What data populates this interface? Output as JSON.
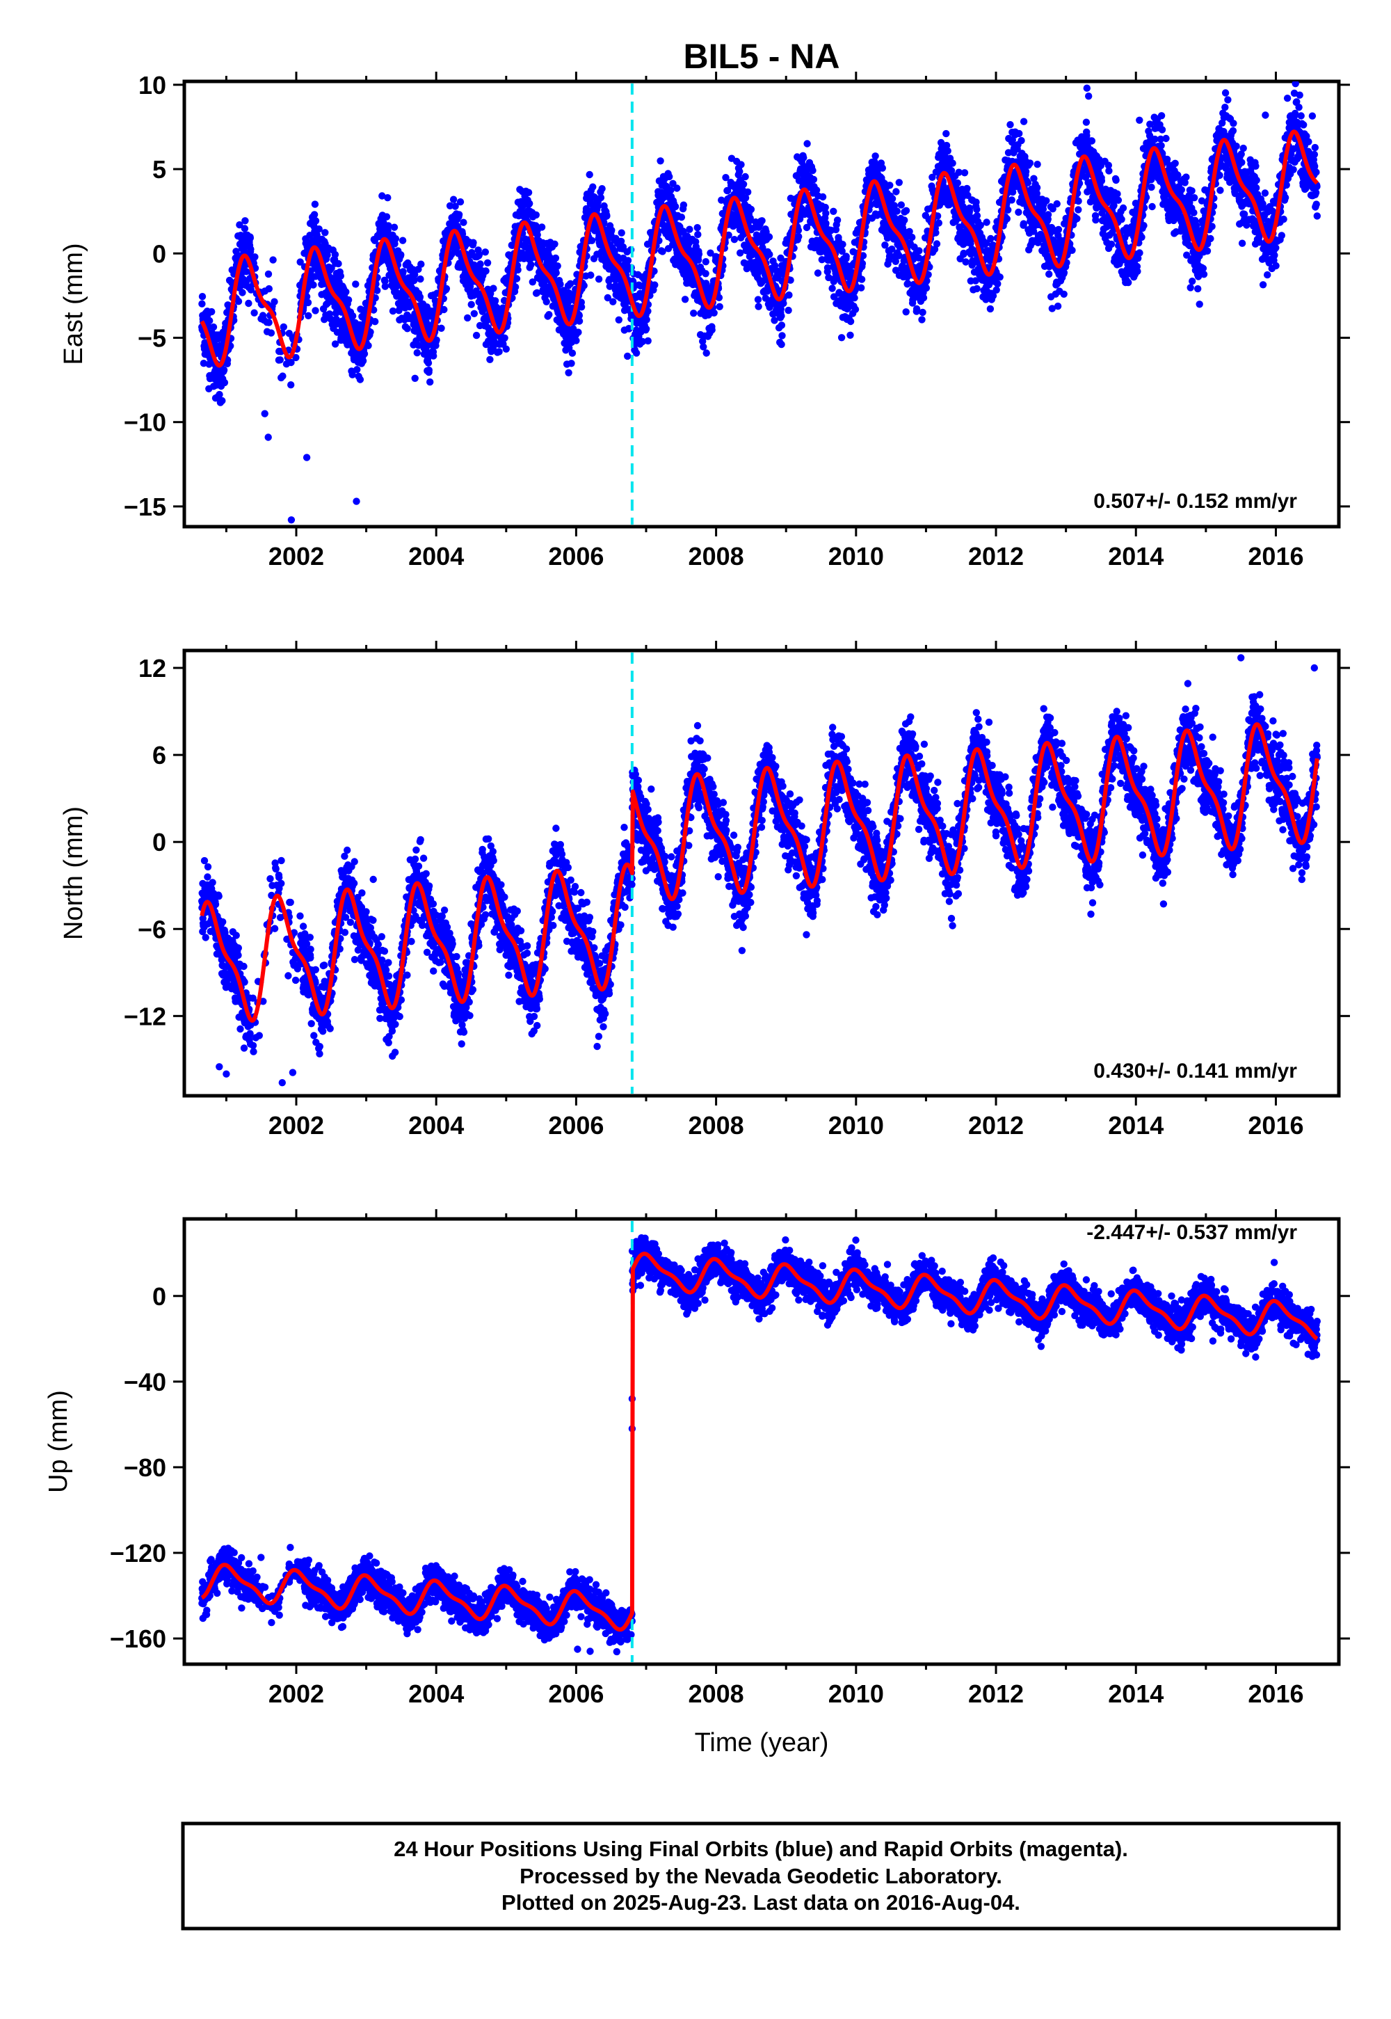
{
  "chart_data": {
    "title": "BIL5 - NA",
    "xlabel": "Time (year)",
    "xlim": [
      2000.4,
      2016.9
    ],
    "xticks": [
      2002,
      2004,
      2006,
      2008,
      2010,
      2012,
      2014,
      2016
    ],
    "xtick_labels": [
      "2002",
      "2004",
      "2006",
      "2008",
      "2010",
      "2012",
      "2014",
      "2016"
    ],
    "data_start": 2000.65,
    "data_end": 2016.59,
    "break_epoch": 2006.8,
    "colors": {
      "data": "#0000ff",
      "model": "#ff0000",
      "break_line": "#00e5ee",
      "frame": "#000000"
    },
    "panels": [
      {
        "type": "scatter",
        "name": "east",
        "ylabel": "East (mm)",
        "ylim": [
          -16.2,
          10.2
        ],
        "yticks": [
          10,
          5,
          0,
          -5,
          -10,
          -15
        ],
        "ytick_labels": [
          "10",
          "5",
          "0",
          "−5",
          "−10",
          "−15"
        ],
        "rate_text": "0.507+/- 0.152 mm/yr",
        "model": {
          "t0": 2000.65,
          "offset0": -3.6,
          "trend": 0.49,
          "step": 0.0,
          "amplitude": 2.7,
          "phase_year": 0.08,
          "noise": 1.1
        },
        "outliers": [
          [
            2001.55,
            -9.5
          ],
          [
            2001.6,
            -10.9
          ],
          [
            2001.93,
            -15.8
          ],
          [
            2002.15,
            -12.1
          ],
          [
            2002.86,
            -14.7
          ],
          [
            2013.3,
            9.8
          ],
          [
            2014.05,
            7.9
          ],
          [
            2015.85,
            8.2
          ]
        ],
        "legend": "none"
      },
      {
        "type": "scatter",
        "name": "north",
        "ylabel": "North (mm)",
        "ylim": [
          -17.5,
          13.2
        ],
        "yticks": [
          12,
          6,
          0,
          -6,
          -12
        ],
        "ytick_labels": [
          "12",
          "6",
          "0",
          "−6",
          "−12"
        ],
        "rate_text": "0.430+/- 0.141 mm/yr",
        "model": {
          "t0": 2000.65,
          "offset0": -8.4,
          "trend": 0.43,
          "step": 5.8,
          "amplitude": 3.6,
          "phase_year": 0.55,
          "noise": 1.2
        },
        "outliers": [
          [
            2000.9,
            -15.5
          ],
          [
            2001.0,
            -16.0
          ],
          [
            2001.8,
            -16.6
          ],
          [
            2001.95,
            -15.9
          ],
          [
            2006.3,
            -14.1
          ],
          [
            2015.5,
            12.7
          ],
          [
            2016.55,
            12.0
          ]
        ],
        "legend": "none"
      },
      {
        "type": "scatter",
        "name": "up",
        "ylabel": "Up (mm)",
        "ylim": [
          -172,
          36
        ],
        "yticks": [
          0,
          -40,
          -80,
          -120,
          -160
        ],
        "ytick_labels": [
          "0",
          "−40",
          "−80",
          "−120",
          "−160"
        ],
        "rate_text": "-2.447+/- 0.537 mm/yr",
        "model": {
          "t0": 2000.65,
          "offset0": -133.0,
          "trend": -2.45,
          "step": 160.0,
          "amplitude": 7.0,
          "phase_year": 0.8,
          "noise": 4.2
        },
        "outliers": [
          [
            2006.8,
            -48.0
          ],
          [
            2006.8,
            -62.0
          ],
          [
            2006.02,
            -165.0
          ],
          [
            2006.2,
            -166.0
          ],
          [
            2015.1,
            -21.0
          ]
        ],
        "legend": "none"
      }
    ],
    "footer_lines": [
      "24 Hour Positions Using Final Orbits (blue) and Rapid Orbits (magenta).",
      "Processed by the Nevada Geodetic Laboratory.",
      "Plotted on 2025-Aug-23. Last data on 2016-Aug-04."
    ]
  }
}
